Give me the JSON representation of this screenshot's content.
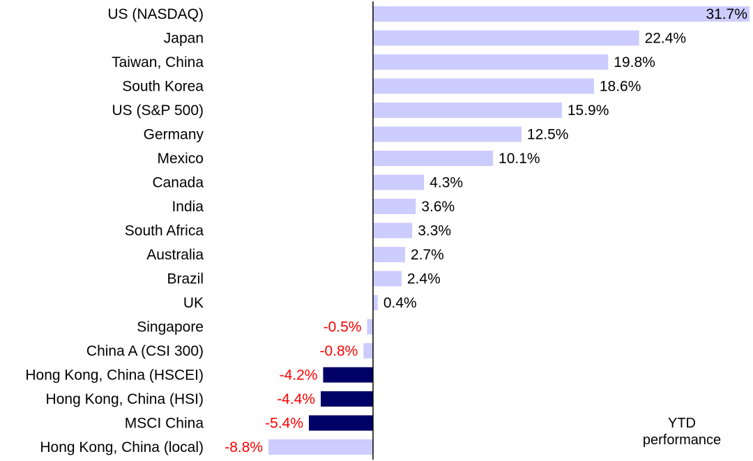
{
  "chart_data": {
    "type": "bar",
    "orientation": "horizontal",
    "categories": [
      "US (NASDAQ)",
      "Japan",
      "Taiwan, China",
      "South Korea",
      "US (S&P 500)",
      "Germany",
      "Mexico",
      "Canada",
      "India",
      "South Africa",
      "Australia",
      "Brazil",
      "UK",
      "Singapore",
      "China A (CSI 300)",
      "Hong Kong, China (HSCEI)",
      "Hong Kong, China (HSI)",
      "MSCI China",
      "Hong Kong, China (local)"
    ],
    "values": [
      31.7,
      22.4,
      19.8,
      18.6,
      15.9,
      12.5,
      10.1,
      4.3,
      3.6,
      3.3,
      2.7,
      2.4,
      0.4,
      -0.5,
      -0.8,
      -4.2,
      -4.4,
      -5.4,
      -8.8
    ],
    "value_labels": [
      "31.7%",
      "22.4%",
      "19.8%",
      "18.6%",
      "15.9%",
      "12.5%",
      "10.1%",
      "4.3%",
      "3.6%",
      "3.3%",
      "2.7%",
      "2.4%",
      "0.4%",
      "-0.5%",
      "-0.8%",
      "-4.2%",
      "-4.4%",
      "-5.4%",
      "-8.8%"
    ],
    "highlight": [
      false,
      false,
      false,
      false,
      false,
      false,
      false,
      false,
      false,
      false,
      false,
      false,
      false,
      false,
      false,
      true,
      true,
      true,
      false
    ],
    "xlim": [
      -9,
      31.7
    ],
    "annotation": "YTD performance",
    "colors": {
      "bar": "#ccccff",
      "highlight_bar": "#000066",
      "positive_label": "#000000",
      "negative_label": "#ff0000",
      "axis": "#000000"
    }
  }
}
